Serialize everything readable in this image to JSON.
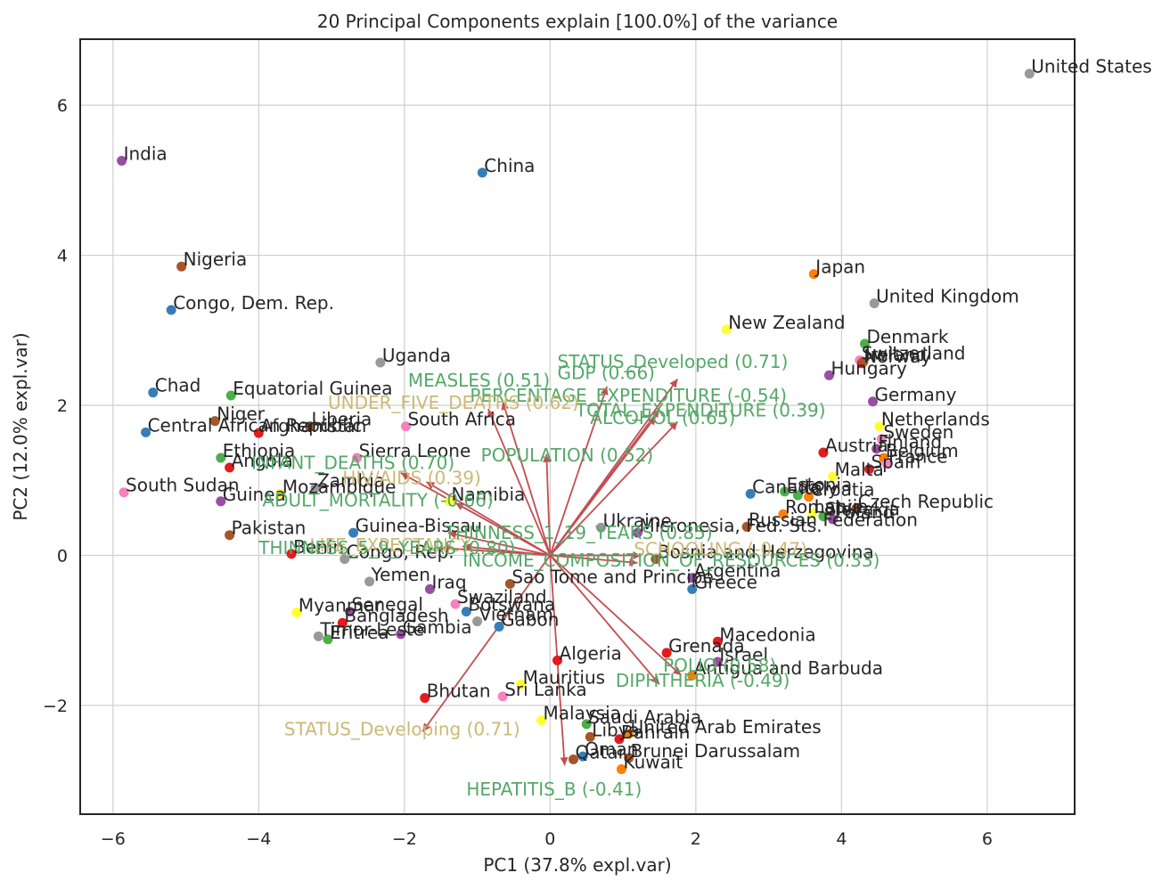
{
  "chart_data": {
    "type": "scatter",
    "title": "20 Principal Components explain [100.0%] of the variance",
    "xlabel": "PC1 (37.8% expl.var)",
    "ylabel": "PC2 (12.0% expl.var)",
    "xlim": [
      -6.45,
      7.2
    ],
    "ylim": [
      -3.45,
      6.88
    ],
    "xticks": [
      -6,
      -4,
      -2,
      0,
      2,
      4,
      6
    ],
    "yticks": [
      -2,
      0,
      2,
      4,
      6
    ],
    "xtick_labels": [
      "−6",
      "−4",
      "−2",
      "0",
      "2",
      "4",
      "6"
    ],
    "ytick_labels": [
      "−2",
      "0",
      "2",
      "4",
      "6"
    ],
    "grid": true,
    "colors": {
      "arrow": "#c44e52",
      "loading_green": "#55a868",
      "loading_tan": "#ccb974",
      "text": "#262626",
      "grid": "#cfcfcf"
    },
    "points": [
      {
        "label": "United States",
        "x": 6.58,
        "y": 6.42,
        "color": "#999999"
      },
      {
        "label": "India",
        "x": -5.88,
        "y": 5.26,
        "color": "#984ea3"
      },
      {
        "label": "China",
        "x": -0.93,
        "y": 5.1,
        "color": "#377eb8"
      },
      {
        "label": "Nigeria",
        "x": -5.06,
        "y": 3.85,
        "color": "#a65628"
      },
      {
        "label": "Japan",
        "x": 3.62,
        "y": 3.75,
        "color": "#ff7f00"
      },
      {
        "label": "United Kingdom",
        "x": 4.45,
        "y": 3.36,
        "color": "#999999"
      },
      {
        "label": "Congo, Dem. Rep.",
        "x": -5.2,
        "y": 3.27,
        "color": "#377eb8"
      },
      {
        "label": "New Zealand",
        "x": 2.42,
        "y": 3.01,
        "color": "#ffff33"
      },
      {
        "label": "Denmark",
        "x": 4.32,
        "y": 2.82,
        "color": "#4daf4a"
      },
      {
        "label": "Switzerland",
        "x": 4.25,
        "y": 2.6,
        "color": "#f781bf"
      },
      {
        "label": "Norway",
        "x": 4.28,
        "y": 2.56,
        "color": "#e41a1c"
      },
      {
        "label": "Ireland",
        "x": 4.3,
        "y": 2.58,
        "color": "#a65628"
      },
      {
        "label": "Uganda",
        "x": -2.33,
        "y": 2.57,
        "color": "#999999"
      },
      {
        "label": "Hungary",
        "x": 3.83,
        "y": 2.4,
        "color": "#984ea3"
      },
      {
        "label": "Chad",
        "x": -5.45,
        "y": 2.17,
        "color": "#377eb8"
      },
      {
        "label": "Equatorial Guinea",
        "x": -4.38,
        "y": 2.13,
        "color": "#4daf4a"
      },
      {
        "label": "Germany",
        "x": 4.43,
        "y": 2.05,
        "color": "#984ea3"
      },
      {
        "label": "Niger",
        "x": -4.6,
        "y": 1.79,
        "color": "#a65628"
      },
      {
        "label": "Liberia",
        "x": -3.3,
        "y": 1.72,
        "color": "#a65628"
      },
      {
        "label": "South Africa",
        "x": -1.98,
        "y": 1.72,
        "color": "#f781bf"
      },
      {
        "label": "Afghanistan",
        "x": -4.0,
        "y": 1.63,
        "color": "#e41a1c"
      },
      {
        "label": "Central African Republic",
        "x": -5.55,
        "y": 1.64,
        "color": "#377eb8"
      },
      {
        "label": "Netherlands",
        "x": 4.52,
        "y": 1.72,
        "color": "#ffff33"
      },
      {
        "label": "Sweden",
        "x": 4.55,
        "y": 1.55,
        "color": "#f781bf"
      },
      {
        "label": "Finland",
        "x": 4.48,
        "y": 1.42,
        "color": "#984ea3"
      },
      {
        "label": "Austria",
        "x": 3.75,
        "y": 1.37,
        "color": "#e41a1c"
      },
      {
        "label": "Belgium",
        "x": 4.58,
        "y": 1.3,
        "color": "#ff7f00"
      },
      {
        "label": "France",
        "x": 4.62,
        "y": 1.22,
        "color": "#f781bf"
      },
      {
        "label": "Spain",
        "x": 4.38,
        "y": 1.15,
        "color": "#e41a1c"
      },
      {
        "label": "Ethiopia",
        "x": -4.52,
        "y": 1.3,
        "color": "#4daf4a"
      },
      {
        "label": "Sierra Leone",
        "x": -2.65,
        "y": 1.3,
        "color": "#f781bf"
      },
      {
        "label": "Angola",
        "x": -4.4,
        "y": 1.17,
        "color": "#e41a1c"
      },
      {
        "label": "Malta",
        "x": 3.88,
        "y": 1.05,
        "color": "#ffff33"
      },
      {
        "label": "Canada",
        "x": 2.75,
        "y": 0.82,
        "color": "#377eb8"
      },
      {
        "label": "Estonia",
        "x": 3.22,
        "y": 0.85,
        "color": "#4daf4a"
      },
      {
        "label": "Italy",
        "x": 3.4,
        "y": 0.8,
        "color": "#4daf4a"
      },
      {
        "label": "Croatia",
        "x": 3.55,
        "y": 0.78,
        "color": "#ff7f00"
      },
      {
        "label": "Czech Republic",
        "x": 4.2,
        "y": 0.62,
        "color": "#a65628"
      },
      {
        "label": "Latvia",
        "x": 3.6,
        "y": 0.56,
        "color": "#ffff33"
      },
      {
        "label": "Slovakia",
        "x": 3.75,
        "y": 0.52,
        "color": "#4daf4a"
      },
      {
        "label": "Poland",
        "x": 3.88,
        "y": 0.48,
        "color": "#984ea3"
      },
      {
        "label": "South Sudan",
        "x": -5.85,
        "y": 0.84,
        "color": "#f781bf"
      },
      {
        "label": "Guinea",
        "x": -4.52,
        "y": 0.72,
        "color": "#984ea3"
      },
      {
        "label": "Mozambique",
        "x": -3.7,
        "y": 0.82,
        "color": "#ffff33"
      },
      {
        "label": "Zambia",
        "x": -3.22,
        "y": 0.9,
        "color": "#999999"
      },
      {
        "label": "Namibia",
        "x": -1.38,
        "y": 0.72,
        "color": "#ffff33"
      },
      {
        "label": "Ukraine",
        "x": 0.7,
        "y": 0.37,
        "color": "#999999"
      },
      {
        "label": "Micronesia, Fed. Sts.",
        "x": 1.2,
        "y": 0.3,
        "color": "#984ea3"
      },
      {
        "label": "Russian Federation",
        "x": 2.7,
        "y": 0.38,
        "color": "#a65628"
      },
      {
        "label": "Romania",
        "x": 3.2,
        "y": 0.55,
        "color": "#ff7f00"
      },
      {
        "label": "Pakistan",
        "x": -4.4,
        "y": 0.27,
        "color": "#a65628"
      },
      {
        "label": "Benin",
        "x": -3.55,
        "y": 0.02,
        "color": "#e41a1c"
      },
      {
        "label": "Congo, Rep.",
        "x": -2.82,
        "y": -0.05,
        "color": "#999999"
      },
      {
        "label": "Guinea-Bissau",
        "x": -2.7,
        "y": 0.3,
        "color": "#377eb8"
      },
      {
        "label": "Bosnia and Herzegovina",
        "x": 1.45,
        "y": -0.05,
        "color": "#a65628"
      },
      {
        "label": "Argentina",
        "x": 1.95,
        "y": -0.3,
        "color": "#984ea3"
      },
      {
        "label": "Yemen",
        "x": -2.48,
        "y": -0.35,
        "color": "#999999"
      },
      {
        "label": "Iraq",
        "x": -1.65,
        "y": -0.45,
        "color": "#984ea3"
      },
      {
        "label": "Sao Tome and Principe",
        "x": -0.55,
        "y": -0.38,
        "color": "#a65628"
      },
      {
        "label": "Greece",
        "x": 1.95,
        "y": -0.45,
        "color": "#377eb8"
      },
      {
        "label": "Myanmar",
        "x": -3.48,
        "y": -0.76,
        "color": "#ffff33"
      },
      {
        "label": "Senegal",
        "x": -2.75,
        "y": -0.75,
        "color": "#984ea3"
      },
      {
        "label": "Bangladesh",
        "x": -2.85,
        "y": -0.9,
        "color": "#e41a1c"
      },
      {
        "label": "Gambia",
        "x": -2.05,
        "y": -1.05,
        "color": "#984ea3"
      },
      {
        "label": "Timor-Leste",
        "x": -3.18,
        "y": -1.08,
        "color": "#999999"
      },
      {
        "label": "Eritrea",
        "x": -3.05,
        "y": -1.12,
        "color": "#4daf4a"
      },
      {
        "label": "Swaziland",
        "x": -1.3,
        "y": -0.65,
        "color": "#f781bf"
      },
      {
        "label": "Botswana",
        "x": -1.15,
        "y": -0.75,
        "color": "#377eb8"
      },
      {
        "label": "Vietnam",
        "x": -1.0,
        "y": -0.88,
        "color": "#999999"
      },
      {
        "label": "Gabon",
        "x": -0.7,
        "y": -0.95,
        "color": "#377eb8"
      },
      {
        "label": "Macedonia",
        "x": 2.3,
        "y": -1.15,
        "color": "#e41a1c"
      },
      {
        "label": "Algeria",
        "x": 0.1,
        "y": -1.4,
        "color": "#e41a1c"
      },
      {
        "label": "Israel",
        "x": 2.3,
        "y": -1.42,
        "color": "#984ea3"
      },
      {
        "label": "Grenada",
        "x": 1.6,
        "y": -1.3,
        "color": "#e41a1c"
      },
      {
        "label": "Antigua and Barbuda",
        "x": 1.95,
        "y": -1.6,
        "color": "#ff7f00"
      },
      {
        "label": "Mauritius",
        "x": -0.4,
        "y": -1.72,
        "color": "#ffff33"
      },
      {
        "label": "Bhutan",
        "x": -1.72,
        "y": -1.9,
        "color": "#e41a1c"
      },
      {
        "label": "Sri Lanka",
        "x": -0.65,
        "y": -1.88,
        "color": "#f781bf"
      },
      {
        "label": "Malaysia",
        "x": -0.12,
        "y": -2.2,
        "color": "#ffff33"
      },
      {
        "label": "Saudi Arabia",
        "x": 0.5,
        "y": -2.25,
        "color": "#4daf4a"
      },
      {
        "label": "United Arab Emirates",
        "x": 1.08,
        "y": -2.38,
        "color": "#ff7f00"
      },
      {
        "label": "Libya",
        "x": 0.55,
        "y": -2.42,
        "color": "#a65628"
      },
      {
        "label": "Bahrain",
        "x": 0.95,
        "y": -2.45,
        "color": "#e41a1c"
      },
      {
        "label": "Brunei Darussalam",
        "x": 1.08,
        "y": -2.7,
        "color": "#a65628"
      },
      {
        "label": "Oman",
        "x": 0.45,
        "y": -2.68,
        "color": "#377eb8"
      },
      {
        "label": "Qatar",
        "x": 0.32,
        "y": -2.72,
        "color": "#a65628"
      },
      {
        "label": "Kuwait",
        "x": 0.98,
        "y": -2.85,
        "color": "#ff7f00"
      }
    ],
    "loadings": [
      {
        "label": "STATUS_Developed (0.71)",
        "x": 1.75,
        "y": 2.35,
        "color": "#55a868"
      },
      {
        "label": "GDP (0.66)",
        "x": 0.78,
        "y": 2.25,
        "color": "#55a868"
      },
      {
        "label": "MEASLES (0.51)",
        "x": -0.65,
        "y": 2.05,
        "color": "#55a868"
      },
      {
        "label": "PERCENTAGE_EXPENDITURE (-0.54)",
        "x": 1.5,
        "y": 1.95,
        "color": "#55a868"
      },
      {
        "label": "TOTAL_EXPENDITURE (0.39)",
        "x": 1.45,
        "y": 1.85,
        "color": "#55a868"
      },
      {
        "label": "ALCOHOL (0.65)",
        "x": 1.75,
        "y": 1.78,
        "color": "#55a868"
      },
      {
        "label": "UNDER_FIVE_DEATHS (0.62)",
        "x": -0.85,
        "y": 1.95,
        "color": "#ccb974"
      },
      {
        "label": "POPULATION (0.52)",
        "x": -0.05,
        "y": 1.35,
        "color": "#55a868"
      },
      {
        "label": "INFANT_DEATHS (0.70)",
        "x": -2.05,
        "y": 1.1,
        "color": "#55a868"
      },
      {
        "label": "HIV/AIDS (0.39)",
        "x": -1.7,
        "y": 0.98,
        "color": "#ccb974"
      },
      {
        "label": "ADULT_MORTALITY (-0.66)",
        "x": -1.3,
        "y": 0.7,
        "color": "#55a868"
      },
      {
        "label": "LIFE_EXPECTANCY",
        "x": -1.2,
        "y": 0.12,
        "color": "#ccb974"
      },
      {
        "label": "THINNESS_5_9_YEARS (0.80)",
        "x": -1.5,
        "y": 0.1,
        "color": "#55a868"
      },
      {
        "label": "THINNESS_1_19_YEARS (0.85)",
        "x": -1.4,
        "y": 0.3,
        "color": "#55a868"
      },
      {
        "label": "SCHOOLING (-0.47)",
        "x": 1.25,
        "y": 0.0,
        "color": "#ccb974"
      },
      {
        "label": "INCOME_COMPOSITION_OF_RESOURCES (0.33)",
        "x": 1.2,
        "y": -0.1,
        "color": "#55a868"
      },
      {
        "label": "POLIO (0.58)",
        "x": 1.8,
        "y": -1.6,
        "color": "#55a868"
      },
      {
        "label": "DIPHTHERIA (-0.49)",
        "x": 1.5,
        "y": -1.72,
        "color": "#55a868"
      },
      {
        "label": "STATUS_Developing (0.71)",
        "x": -1.75,
        "y": -2.35,
        "color": "#ccb974"
      },
      {
        "label": "HEPATITIS_B (-0.41)",
        "x": 0.2,
        "y": -2.8,
        "color": "#55a868"
      }
    ],
    "loading_label_positions": [
      {
        "x": 0.1,
        "y": 2.5
      },
      {
        "x": 0.1,
        "y": 2.35
      },
      {
        "x": -1.95,
        "y": 2.25
      },
      {
        "x": -1.1,
        "y": 2.05
      },
      {
        "x": 0.35,
        "y": 1.85
      },
      {
        "x": 0.55,
        "y": 1.75
      },
      {
        "x": -3.05,
        "y": 1.95
      },
      {
        "x": -0.95,
        "y": 1.25
      },
      {
        "x": -4.1,
        "y": 1.15
      },
      {
        "x": -2.85,
        "y": 0.95
      },
      {
        "x": -3.95,
        "y": 0.65
      },
      {
        "x": -3.3,
        "y": 0.05
      },
      {
        "x": -4.0,
        "y": 0.02
      },
      {
        "x": -1.45,
        "y": 0.22
      },
      {
        "x": 1.15,
        "y": 0.0
      },
      {
        "x": -1.2,
        "y": -0.15
      },
      {
        "x": 1.55,
        "y": -1.55
      },
      {
        "x": 0.9,
        "y": -1.75
      },
      {
        "x": -3.65,
        "y": -2.4
      },
      {
        "x": -1.15,
        "y": -3.2
      }
    ]
  }
}
